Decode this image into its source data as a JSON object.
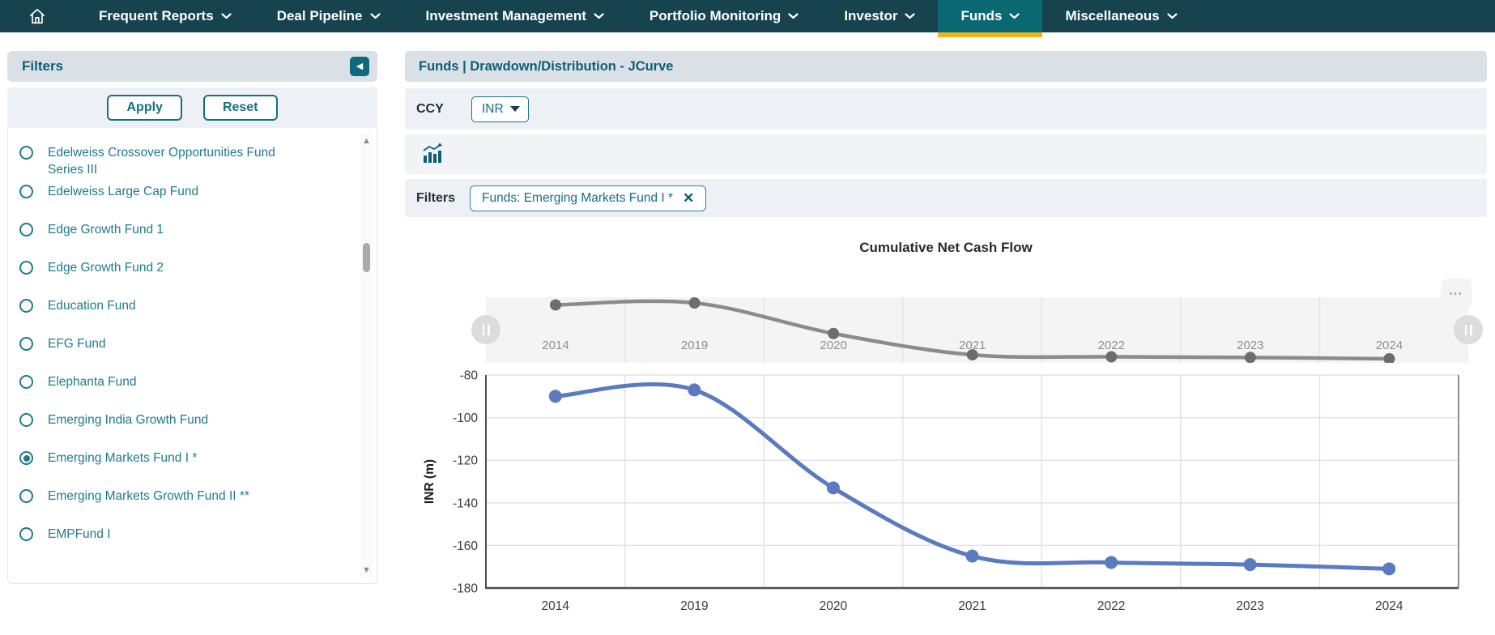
{
  "colors": {
    "navbar": "#17434f",
    "navbar_active_tab": "#0a6873",
    "active_underline": "#f1b31b",
    "accent_teal": "#147082",
    "header_band": "#d9e1e7",
    "row_band": "#edf1f5",
    "line_blue": "#5b7ac0",
    "line_gray": "#8b8b8b"
  },
  "nav": {
    "home_icon": "house",
    "items": [
      {
        "label": "Frequent Reports",
        "active": false
      },
      {
        "label": "Deal Pipeline",
        "active": false
      },
      {
        "label": "Investment Management",
        "active": false
      },
      {
        "label": "Portfolio Monitoring",
        "active": false
      },
      {
        "label": "Investor",
        "active": false
      },
      {
        "label": "Funds",
        "active": true
      },
      {
        "label": "Miscellaneous",
        "active": false
      }
    ]
  },
  "sidebar": {
    "title": "Filters",
    "collapse_icon": "◀",
    "apply_label": "Apply",
    "reset_label": "Reset",
    "scroll_up_icon": "▲",
    "scroll_down_icon": "▼",
    "funds": [
      {
        "label": "Edelweiss Crossover Opportunities Fund Series III",
        "selected": false
      },
      {
        "label": "Edelweiss Large Cap Fund",
        "selected": false
      },
      {
        "label": "Edge Growth Fund 1",
        "selected": false
      },
      {
        "label": "Edge Growth Fund 2",
        "selected": false
      },
      {
        "label": "Education Fund",
        "selected": false
      },
      {
        "label": "EFG Fund",
        "selected": false
      },
      {
        "label": "Elephanta Fund",
        "selected": false
      },
      {
        "label": "Emerging India Growth Fund",
        "selected": false
      },
      {
        "label": "Emerging Markets Fund I *",
        "selected": true
      },
      {
        "label": "Emerging Markets Growth Fund II **",
        "selected": false
      },
      {
        "label": "EMPFund I",
        "selected": false
      }
    ]
  },
  "main": {
    "breadcrumb": "Funds | Drawdown/Distribution - JCurve",
    "ccy_label": "CCY",
    "ccy_value": "INR",
    "chart_toggle_icon": "bar-chart-trend",
    "filters_label": "Filters",
    "filter_chip": "Funds: Emerging Markets Fund I *",
    "chip_close_icon": "✕",
    "overflow_icon": "⋯"
  },
  "chart_data": {
    "type": "line",
    "title": "Cumulative Net Cash Flow",
    "xlabel": "",
    "ylabel": "INR (m)",
    "categories": [
      "2014",
      "2019",
      "2020",
      "2021",
      "2022",
      "2023",
      "2024"
    ],
    "series": [
      {
        "name": "Cumulative Net Cash Flow",
        "values": [
          -90,
          -87,
          -133,
          -165,
          -168,
          -169,
          -171
        ]
      }
    ],
    "ylim": [
      -180,
      -80
    ],
    "yticks": [
      -80,
      -100,
      -120,
      -140,
      -160,
      -180
    ],
    "grid": true,
    "legend_position": "none",
    "navigator": {
      "present": true,
      "labels": [
        "2014",
        "2019",
        "2020",
        "2021",
        "2022",
        "2023",
        "2024"
      ]
    }
  }
}
